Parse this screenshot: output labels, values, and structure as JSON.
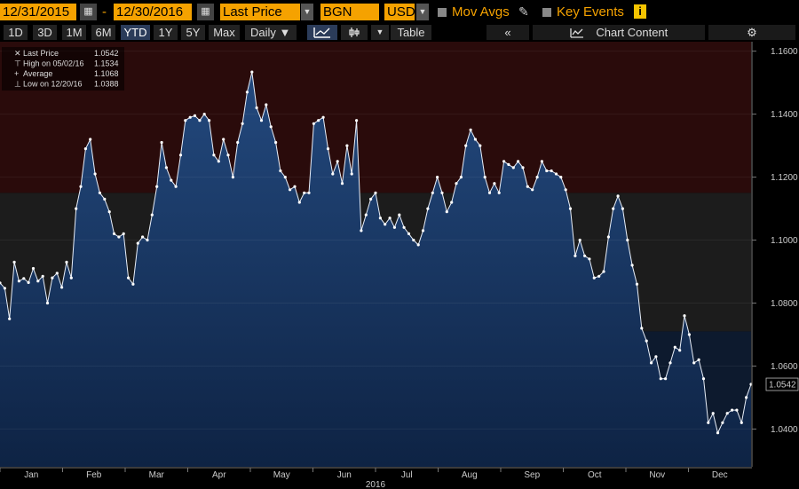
{
  "toolbar": {
    "start_date": "12/31/2015",
    "separator": "-",
    "end_date": "12/30/2016",
    "field": "Last Price",
    "source": "BGN",
    "currency": "USD",
    "mov_avgs": "Mov Avgs",
    "key_events": "Key Events",
    "info_badge": "i"
  },
  "ranges": [
    {
      "label": "1D",
      "selected": false
    },
    {
      "label": "3D",
      "selected": false
    },
    {
      "label": "1M",
      "selected": false
    },
    {
      "label": "6M",
      "selected": false
    },
    {
      "label": "YTD",
      "selected": true
    },
    {
      "label": "1Y",
      "selected": false
    },
    {
      "label": "5Y",
      "selected": false
    },
    {
      "label": "Max",
      "selected": false
    }
  ],
  "view": {
    "frequency": "Daily",
    "table": "Table",
    "chart_content": "Chart Content"
  },
  "colors": {
    "accent": "#f5a200",
    "area_fill": "#1b3a66",
    "band_red": "#2a0b0b",
    "band_dark": "#1c1c1c",
    "band_blue": "#0d1a2e"
  },
  "chart_data": {
    "type": "area",
    "year_label": "2016",
    "months": [
      "Jan",
      "Feb",
      "Mar",
      "Apr",
      "May",
      "Jun",
      "Jul",
      "Aug",
      "Sep",
      "Oct",
      "Nov",
      "Dec"
    ],
    "ylim": [
      1.028,
      1.163
    ],
    "yticks": [
      "1.1600",
      "1.1400",
      "1.1200",
      "1.1000",
      "1.0800",
      "1.0600",
      "1.0400"
    ],
    "last_value": "1.0542",
    "legend": [
      {
        "label": "Last Price",
        "value": "1.0542"
      },
      {
        "label": "High on 05/02/16",
        "value": "1.1534"
      },
      {
        "label": "Average",
        "value": "1.1068"
      },
      {
        "label": "Low on 12/20/16",
        "value": "1.0388"
      }
    ],
    "series": [
      {
        "name": "Last Price",
        "values": [
          1.0864,
          1.0847,
          1.075,
          1.093,
          1.087,
          1.0878,
          1.0865,
          1.091,
          1.087,
          1.0885,
          1.08,
          1.088,
          1.0895,
          1.085,
          1.093,
          1.088,
          1.11,
          1.117,
          1.129,
          1.132,
          1.121,
          1.115,
          1.113,
          1.109,
          1.102,
          1.101,
          1.102,
          1.088,
          1.086,
          1.099,
          1.101,
          1.1,
          1.108,
          1.117,
          1.131,
          1.123,
          1.119,
          1.117,
          1.127,
          1.138,
          1.139,
          1.1395,
          1.138,
          1.14,
          1.138,
          1.127,
          1.125,
          1.132,
          1.127,
          1.12,
          1.131,
          1.137,
          1.147,
          1.1534,
          1.142,
          1.138,
          1.143,
          1.136,
          1.131,
          1.122,
          1.12,
          1.116,
          1.117,
          1.112,
          1.115,
          1.115,
          1.137,
          1.138,
          1.139,
          1.129,
          1.121,
          1.125,
          1.118,
          1.13,
          1.121,
          1.138,
          1.103,
          1.108,
          1.113,
          1.115,
          1.107,
          1.105,
          1.107,
          1.104,
          1.108,
          1.104,
          1.102,
          1.1,
          1.0985,
          1.103,
          1.11,
          1.115,
          1.12,
          1.115,
          1.109,
          1.112,
          1.118,
          1.12,
          1.13,
          1.135,
          1.132,
          1.13,
          1.12,
          1.115,
          1.118,
          1.115,
          1.125,
          1.124,
          1.123,
          1.125,
          1.123,
          1.117,
          1.116,
          1.12,
          1.125,
          1.122,
          1.122,
          1.121,
          1.12,
          1.116,
          1.11,
          1.095,
          1.1,
          1.095,
          1.094,
          1.088,
          1.0885,
          1.09,
          1.101,
          1.11,
          1.114,
          1.11,
          1.1,
          1.092,
          1.086,
          1.072,
          1.068,
          1.061,
          1.063,
          1.056,
          1.056,
          1.061,
          1.066,
          1.065,
          1.076,
          1.07,
          1.061,
          1.062,
          1.056,
          1.042,
          1.045,
          1.0388,
          1.042,
          1.045,
          1.046,
          1.046,
          1.042,
          1.05,
          1.0542
        ]
      }
    ]
  }
}
